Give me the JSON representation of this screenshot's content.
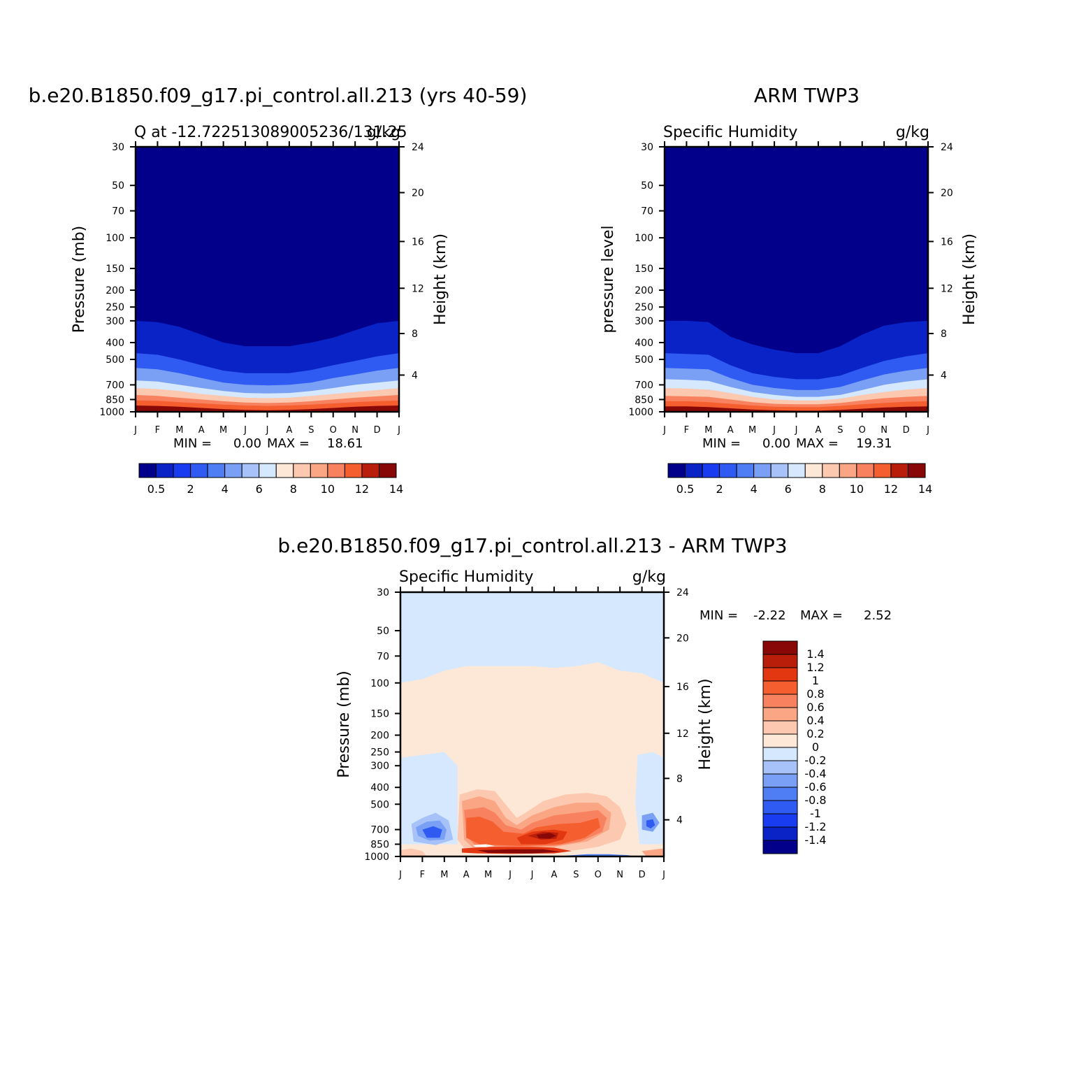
{
  "chart_data": [
    {
      "type": "heatmap",
      "title": "b.e20.B1850.f09_g17.pi_control.all.213 (yrs 40-59)",
      "left_label": "Q at -12.722513089005236/131.25",
      "right_label": "g/kg",
      "ylabel": "Pressure (mb)",
      "ylabel_right": "Height (km)",
      "x_ticks": [
        "J",
        "F",
        "M",
        "A",
        "M",
        "J",
        "J",
        "A",
        "S",
        "O",
        "N",
        "D",
        "J"
      ],
      "y_ticks": [
        "30",
        "50",
        "70",
        "100",
        "150",
        "200",
        "250",
        "300",
        "400",
        "500",
        "700",
        "850",
        "1000"
      ],
      "y_ticks_right": [
        "24",
        "20",
        "16",
        "12",
        "8",
        "4"
      ],
      "stats": {
        "min_label": "MIN =",
        "min": "0.00",
        "max_label": "MAX =",
        "max": "18.61"
      },
      "colorbar": {
        "levels": [
          "0.5",
          "1",
          "2",
          "3",
          "4",
          "5",
          "6",
          "7",
          "8",
          "9",
          "10",
          "11",
          "12",
          "13",
          "14"
        ],
        "labels": [
          "0.5",
          "2",
          "4",
          "6",
          "8",
          "10",
          "12",
          "14"
        ]
      },
      "months": [
        1,
        2,
        3,
        4,
        5,
        6,
        7,
        8,
        9,
        10,
        11,
        12,
        13
      ],
      "boundary_pressure_mb": {
        "0.5": [
          300,
          305,
          325,
          360,
          400,
          420,
          420,
          420,
          400,
          375,
          340,
          310,
          300
        ],
        "2": [
          460,
          470,
          500,
          540,
          580,
          600,
          600,
          600,
          575,
          540,
          510,
          480,
          460
        ],
        "4": [
          560,
          570,
          600,
          640,
          680,
          700,
          705,
          700,
          680,
          640,
          610,
          580,
          560
        ],
        "6": [
          660,
          670,
          700,
          730,
          760,
          780,
          785,
          780,
          760,
          730,
          700,
          680,
          660
        ],
        "8": [
          730,
          740,
          760,
          790,
          810,
          830,
          835,
          830,
          810,
          790,
          770,
          750,
          730
        ],
        "10": [
          800,
          810,
          830,
          850,
          870,
          885,
          890,
          885,
          870,
          850,
          830,
          815,
          800
        ],
        "12": [
          860,
          865,
          880,
          895,
          910,
          920,
          925,
          920,
          910,
          895,
          880,
          870,
          860
        ],
        "14": [
          920,
          925,
          935,
          950,
          965,
          975,
          980,
          975,
          965,
          950,
          935,
          925,
          920
        ]
      }
    },
    {
      "type": "heatmap",
      "title": "ARM TWP3",
      "left_label": "Specific Humidity",
      "right_label": "g/kg",
      "ylabel": "pressure level",
      "ylabel_right": "Height (km)",
      "x_ticks": [
        "J",
        "F",
        "M",
        "A",
        "M",
        "J",
        "J",
        "A",
        "S",
        "O",
        "N",
        "D",
        "J"
      ],
      "y_ticks": [
        "30",
        "50",
        "70",
        "100",
        "150",
        "200",
        "250",
        "300",
        "400",
        "500",
        "700",
        "850",
        "1000"
      ],
      "y_ticks_right": [
        "24",
        "20",
        "16",
        "12",
        "8",
        "4"
      ],
      "stats": {
        "min_label": "MIN =",
        "min": "0.00",
        "max_label": "MAX =",
        "max": "19.31"
      },
      "colorbar": {
        "levels": [
          "0.5",
          "1",
          "2",
          "3",
          "4",
          "5",
          "6",
          "7",
          "8",
          "9",
          "10",
          "11",
          "12",
          "13",
          "14"
        ],
        "labels": [
          "0.5",
          "2",
          "4",
          "6",
          "8",
          "10",
          "12",
          "14"
        ]
      },
      "months": [
        1,
        2,
        3,
        4,
        5,
        6,
        7,
        8,
        9,
        10,
        11,
        12,
        13
      ],
      "boundary_pressure_mb": {
        "0.5": [
          300,
          300,
          305,
          370,
          410,
          440,
          460,
          460,
          420,
          360,
          320,
          305,
          300
        ],
        "2": [
          460,
          465,
          470,
          540,
          600,
          630,
          650,
          650,
          620,
          560,
          510,
          480,
          460
        ],
        "4": [
          560,
          565,
          570,
          640,
          700,
          730,
          750,
          750,
          720,
          660,
          610,
          580,
          560
        ],
        "6": [
          650,
          655,
          665,
          720,
          770,
          800,
          820,
          820,
          800,
          750,
          700,
          670,
          650
        ],
        "8": [
          730,
          735,
          745,
          780,
          820,
          850,
          860,
          860,
          840,
          800,
          770,
          745,
          730
        ],
        "10": [
          810,
          815,
          820,
          850,
          880,
          900,
          905,
          905,
          890,
          860,
          835,
          820,
          810
        ],
        "12": [
          870,
          870,
          880,
          900,
          920,
          935,
          940,
          940,
          925,
          905,
          890,
          875,
          870
        ],
        "14": [
          930,
          930,
          940,
          955,
          970,
          980,
          985,
          985,
          975,
          960,
          945,
          935,
          930
        ]
      }
    },
    {
      "type": "heatmap",
      "title": "b.e20.B1850.f09_g17.pi_control.all.213 - ARM TWP3",
      "left_label": "Specific Humidity",
      "right_label": "g/kg",
      "ylabel": "Pressure (mb)",
      "ylabel_right": "Height (km)",
      "x_ticks": [
        "J",
        "F",
        "M",
        "A",
        "M",
        "J",
        "J",
        "A",
        "S",
        "O",
        "N",
        "D",
        "J"
      ],
      "y_ticks": [
        "30",
        "50",
        "70",
        "100",
        "150",
        "200",
        "250",
        "300",
        "400",
        "500",
        "700",
        "850",
        "1000"
      ],
      "y_ticks_right": [
        "24",
        "20",
        "16",
        "12",
        "8",
        "4"
      ],
      "stats": {
        "min_label": "MIN =",
        "min": "-2.22",
        "max_label": "MAX =",
        "max": "2.52"
      },
      "colorbar": {
        "labels": [
          "1.4",
          "1.2",
          "1",
          "0.8",
          "0.6",
          "0.4",
          "0.2",
          "0",
          "-0.2",
          "-0.4",
          "-0.6",
          "-0.8",
          "-1",
          "-1.2",
          "-1.4"
        ]
      },
      "colors": {
        "negative": [
          "#02008a",
          "#0a23c6",
          "#1a3cf0",
          "#2f5bf2",
          "#4f7ef4",
          "#7aa0f6",
          "#a6c2f9",
          "#d5e8fd"
        ],
        "positive": [
          "#fde8d7",
          "#fcc8af",
          "#faa685",
          "#f8825f",
          "#f55e2e",
          "#e33712",
          "#b81e0a",
          "#880808"
        ]
      }
    }
  ]
}
